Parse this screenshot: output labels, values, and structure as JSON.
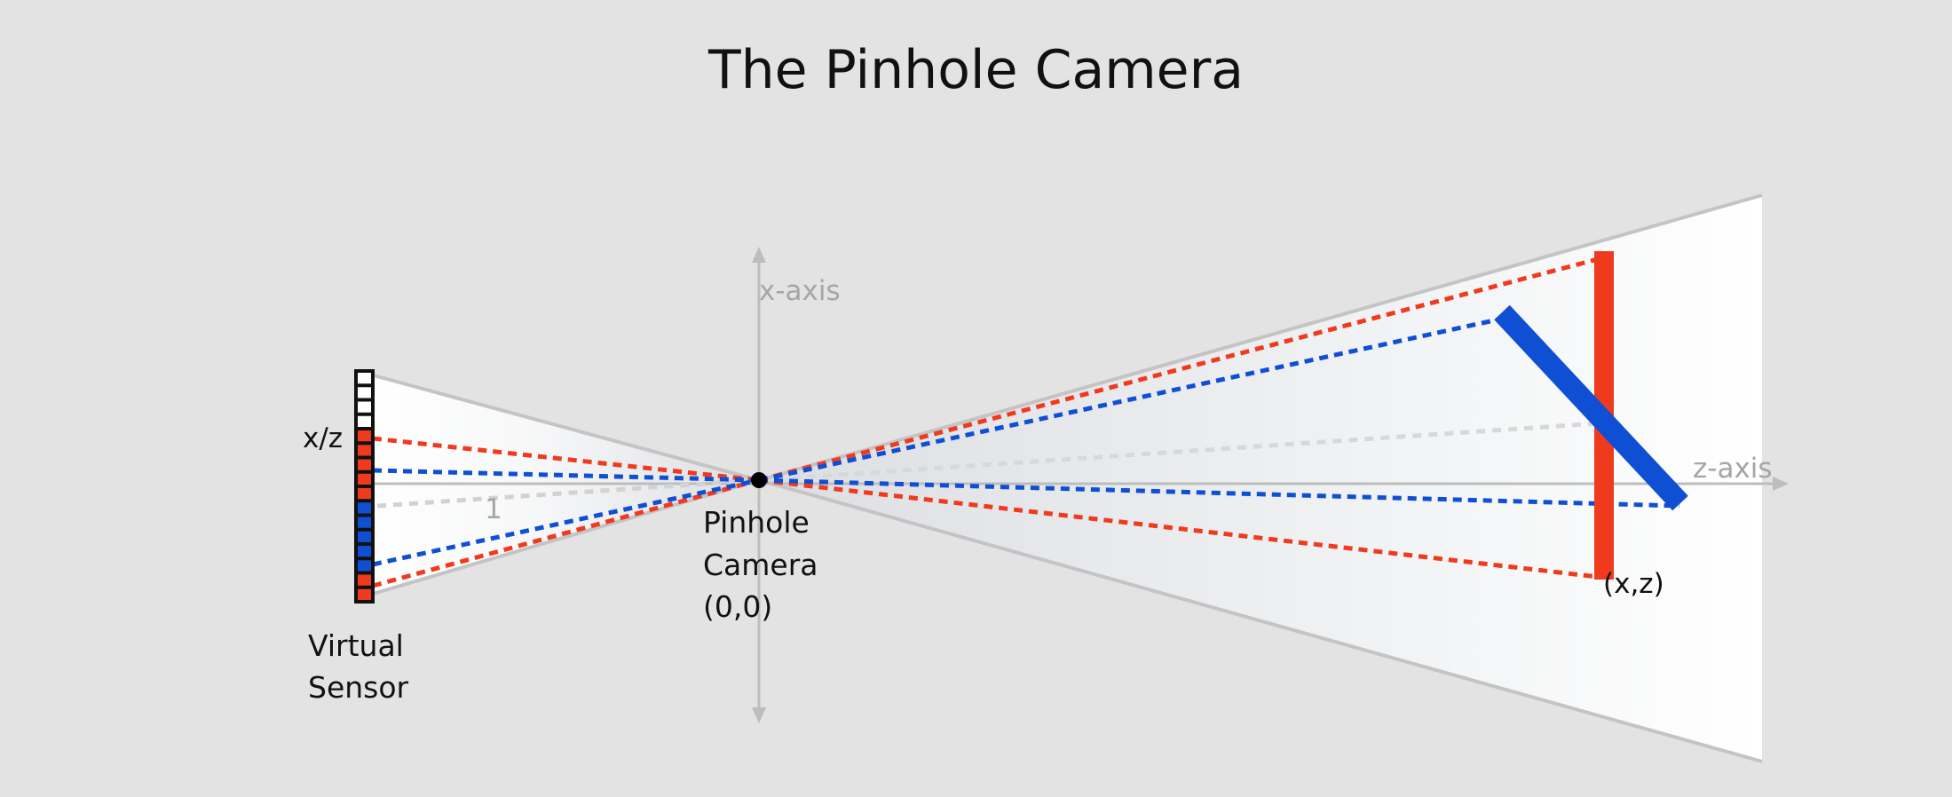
{
  "title": "The Pinhole Camera",
  "labels": {
    "x_axis": "x-axis",
    "z_axis": "z-axis",
    "x_over_z": "x/z",
    "one": "1",
    "pinhole_line1": "Pinhole",
    "pinhole_line2": "Camera",
    "pinhole_line3": "(0,0)",
    "sensor_line1": "Virtual",
    "sensor_line2": "Sensor",
    "point_xz": "(x,z)"
  },
  "colors": {
    "background": "#e3e3e3",
    "red": "#f03a1e",
    "blue": "#0f4fd4",
    "axis": "#b8b8b8",
    "label_dark": "#111111",
    "label_gray": "#a6a6a6"
  },
  "sensor_cells": [
    "white",
    "white",
    "white",
    "white",
    "red",
    "red",
    "red",
    "red",
    "red",
    "blue",
    "blue",
    "blue",
    "blue",
    "blue",
    "red",
    "red"
  ]
}
